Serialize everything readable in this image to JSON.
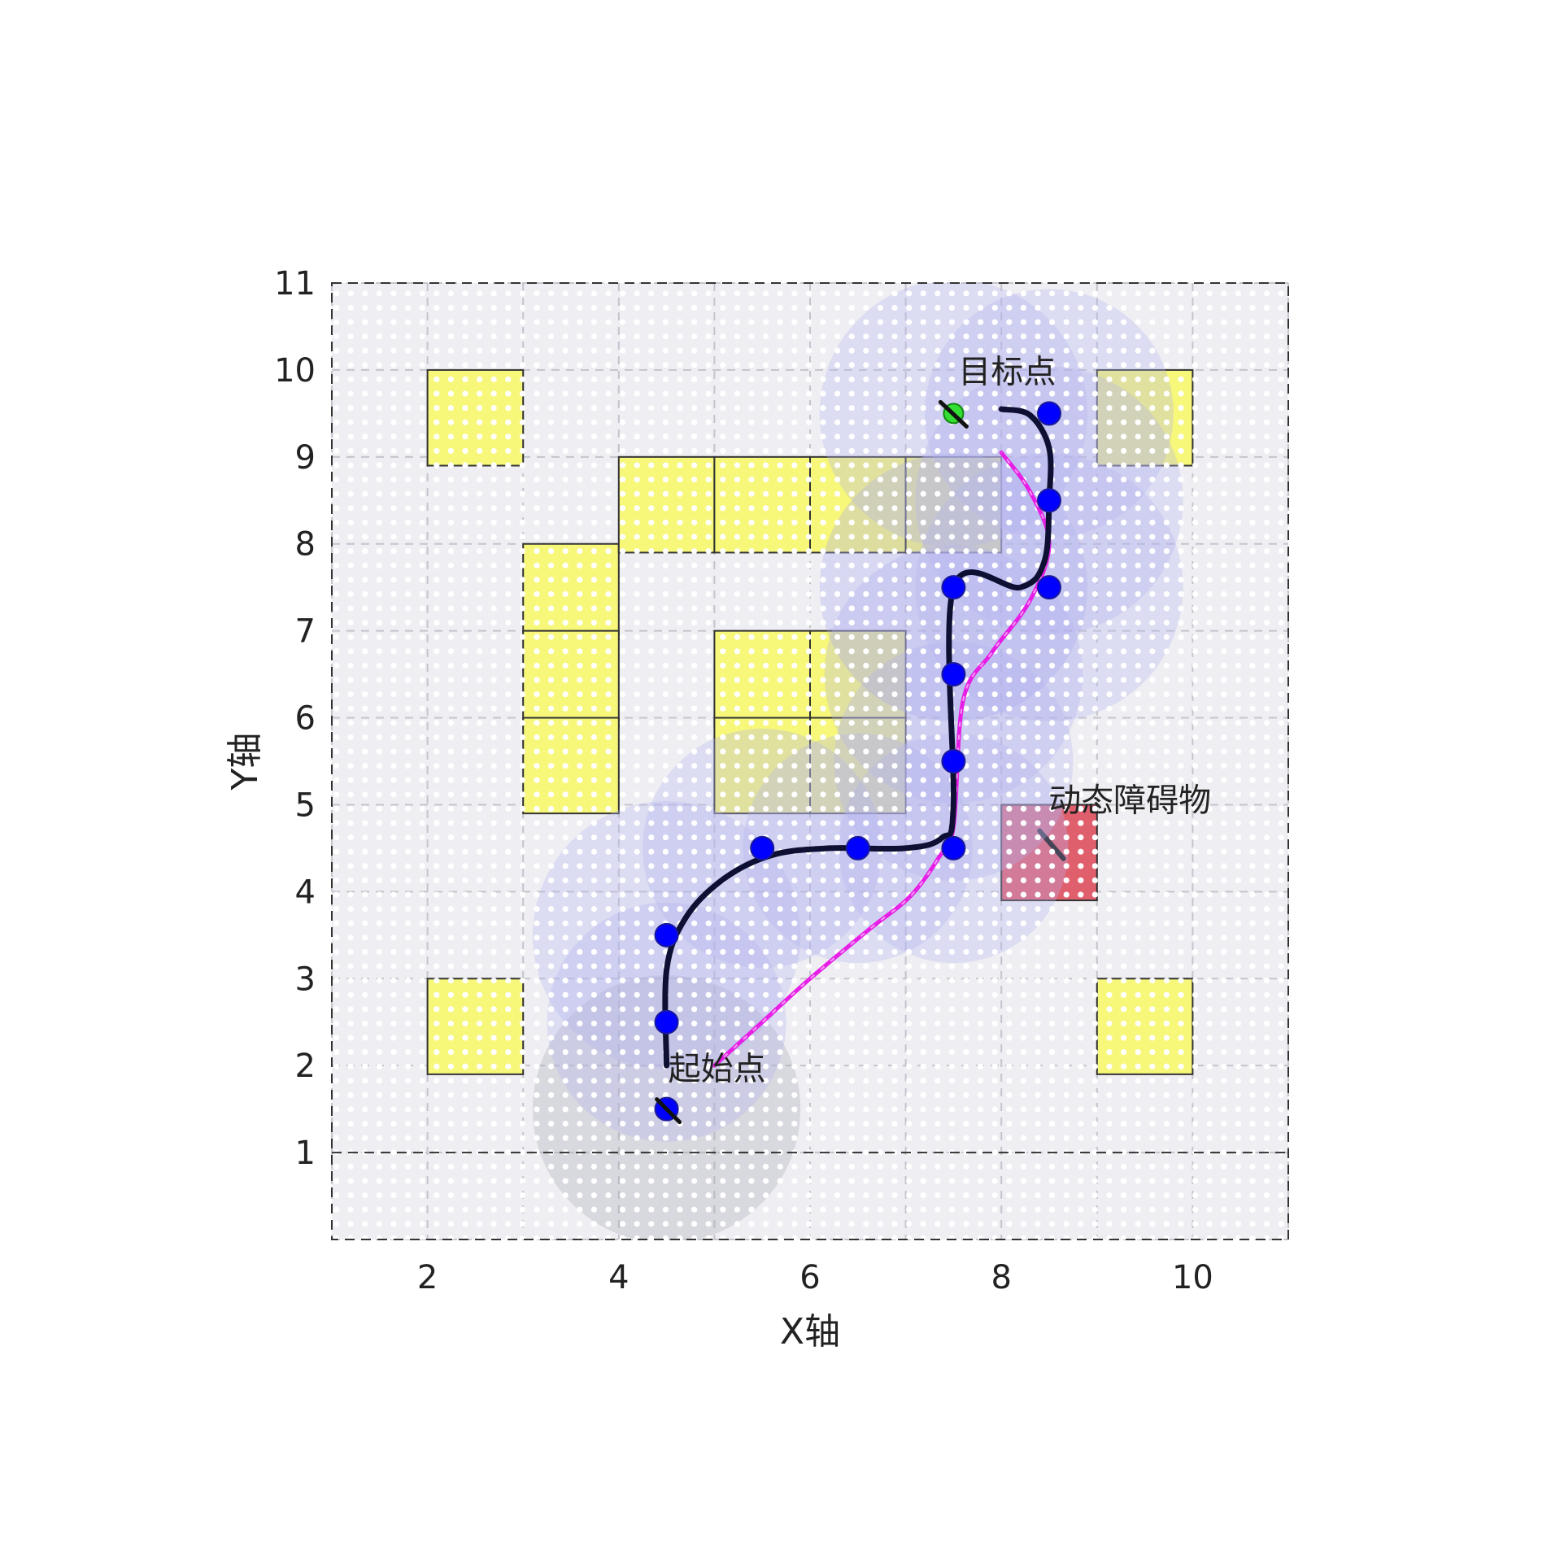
{
  "chart_data": {
    "type": "scatter",
    "title": "",
    "xlabel": "X轴",
    "ylabel": "Y轴",
    "xlim": [
      1,
      11
    ],
    "ylim": [
      0,
      11
    ],
    "xticks": [
      "2",
      "4",
      "6",
      "8",
      "10"
    ],
    "yticks": [
      "1",
      "2",
      "3",
      "4",
      "5",
      "6",
      "7",
      "8",
      "9",
      "10",
      "11"
    ],
    "grid": true,
    "map_region": {
      "x": [
        1,
        11
      ],
      "y": [
        1,
        11
      ]
    },
    "static_obstacles": [
      [
        2,
        9
      ],
      [
        3,
        7
      ],
      [
        3,
        6
      ],
      [
        3,
        5
      ],
      [
        4,
        8
      ],
      [
        5,
        8
      ],
      [
        6,
        8
      ],
      [
        7,
        8
      ],
      [
        5,
        6
      ],
      [
        5,
        5
      ],
      [
        6,
        6
      ],
      [
        6,
        5
      ],
      [
        9,
        9
      ],
      [
        2,
        2
      ],
      [
        9,
        2
      ]
    ],
    "dynamic_obstacle": {
      "cell": [
        8,
        4
      ],
      "label": "动态障碍物",
      "heading": [
        8.4,
        4.7,
        8.65,
        4.38
      ]
    },
    "start": {
      "point": [
        4.5,
        1.5
      ],
      "label": "起始点"
    },
    "goal": {
      "point": [
        7.5,
        9.5
      ],
      "label": "目标点"
    },
    "waypoints": [
      [
        4.5,
        1.5
      ],
      [
        4.5,
        2.5
      ],
      [
        4.5,
        3.5
      ],
      [
        5.5,
        4.5
      ],
      [
        6.5,
        4.5
      ],
      [
        7.5,
        4.5
      ],
      [
        7.5,
        5.5
      ],
      [
        7.5,
        6.5
      ],
      [
        7.5,
        7.5
      ],
      [
        8.5,
        7.5
      ],
      [
        8.5,
        8.5
      ],
      [
        8.5,
        9.5
      ]
    ],
    "smooth_path": [
      [
        4.5,
        2.0
      ],
      [
        4.5,
        3.1
      ],
      [
        4.7,
        3.7
      ],
      [
        5.1,
        4.15
      ],
      [
        5.6,
        4.42
      ],
      [
        6.2,
        4.5
      ],
      [
        7.0,
        4.5
      ],
      [
        7.38,
        4.62
      ],
      [
        7.5,
        5.0
      ],
      [
        7.5,
        7.5
      ],
      [
        8.2,
        7.5
      ],
      [
        8.45,
        7.8
      ],
      [
        8.5,
        8.5
      ],
      [
        8.5,
        9.1
      ],
      [
        8.3,
        9.48
      ],
      [
        8.0,
        9.55
      ]
    ],
    "replanned_path": [
      [
        5.0,
        2.0
      ],
      [
        5.5,
        2.5
      ],
      [
        6.0,
        3.0
      ],
      [
        6.6,
        3.55
      ],
      [
        7.05,
        3.95
      ],
      [
        7.35,
        4.4
      ],
      [
        7.5,
        4.75
      ],
      [
        7.6,
        6.2
      ],
      [
        7.9,
        6.75
      ],
      [
        8.3,
        7.35
      ],
      [
        8.5,
        8.0
      ],
      [
        8.3,
        8.6
      ],
      [
        8.0,
        9.05
      ]
    ],
    "regions": [
      {
        "center": [
          4.5,
          1.5
        ],
        "radius": 1.4,
        "color": "#a9a9b4"
      },
      {
        "center": [
          4.5,
          2.5
        ],
        "radius": 1.25,
        "color": "#b3b3ee"
      },
      {
        "center": [
          4.5,
          3.5
        ],
        "radius": 1.4,
        "color": "#b3b3ee"
      },
      {
        "center": [
          5.5,
          4.5
        ],
        "radius": 1.25,
        "color": "#b3b3ee"
      },
      {
        "center": [
          6.5,
          4.5
        ],
        "radius": 1.2,
        "color": "#b3b3ee"
      },
      {
        "center": [
          7.5,
          4.5
        ],
        "radius": 1.2,
        "color": "#b3b3ee"
      },
      {
        "center": [
          7.5,
          5.5
        ],
        "radius": 1.25,
        "color": "#b3b3ee"
      },
      {
        "center": [
          7.5,
          6.5
        ],
        "radius": 1.35,
        "color": "#b3b3ee"
      },
      {
        "center": [
          7.5,
          7.5
        ],
        "radius": 1.4,
        "color": "#a8a8f0"
      },
      {
        "center": [
          8.5,
          7.5
        ],
        "radius": 1.4,
        "color": "#b3b3ee"
      },
      {
        "center": [
          8.5,
          8.5
        ],
        "radius": 1.4,
        "color": "#b3b3ee"
      },
      {
        "center": [
          8.5,
          9.5
        ],
        "radius": 1.3,
        "color": "#b3b3ee"
      },
      {
        "center": [
          7.5,
          9.5
        ],
        "radius": 1.4,
        "color": "#b3b3ee"
      }
    ],
    "colors": {
      "plot_bg": "#efeff3",
      "dot": "#ffffff",
      "obstacle": "#f7f77a",
      "dynamic_obstacle": "#e05f6d",
      "waypoint": "#0000ff",
      "goal_marker": "#33dd33",
      "smooth_path": "#0d1033",
      "replanned_path": "#e61ee6"
    }
  }
}
